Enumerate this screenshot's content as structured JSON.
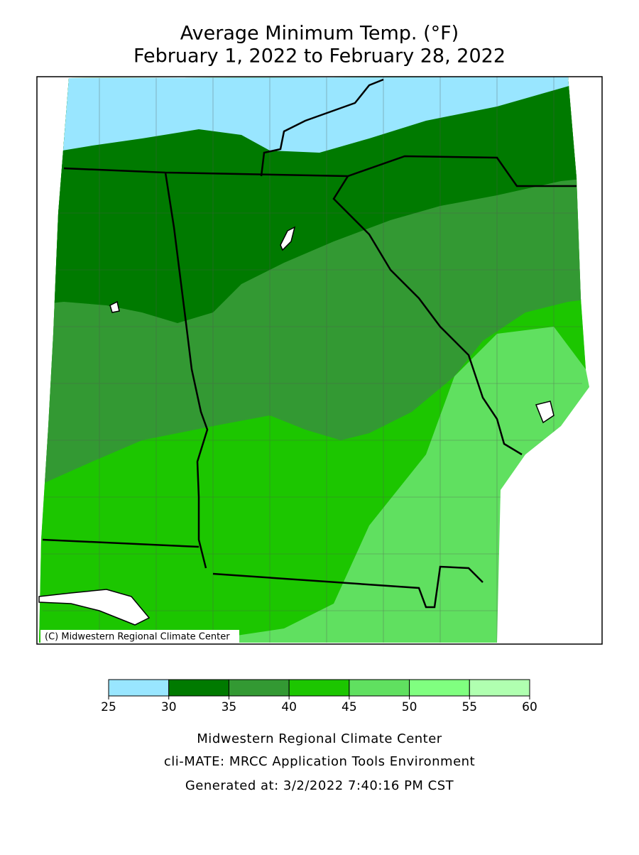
{
  "header": {
    "title": "Average Minimum Temp. (°F)",
    "subtitle": "February 1, 2022 to February 28, 2022"
  },
  "map": {
    "copyright": "(C) Midwestern Regional Climate Center"
  },
  "legend": {
    "ticks": [
      25,
      30,
      35,
      40,
      45,
      50,
      55,
      60
    ],
    "colors": [
      "#99e6ff",
      "#007a00",
      "#339933",
      "#1cc600",
      "#60e060",
      "#80ff80",
      "#b0ffb0"
    ]
  },
  "footer": {
    "lines": [
      "Midwestern Regional Climate Center",
      "cli-MATE: MRCC Application Tools Environment",
      "Generated at: 3/2/2022 7:40:16 PM CST"
    ]
  }
}
